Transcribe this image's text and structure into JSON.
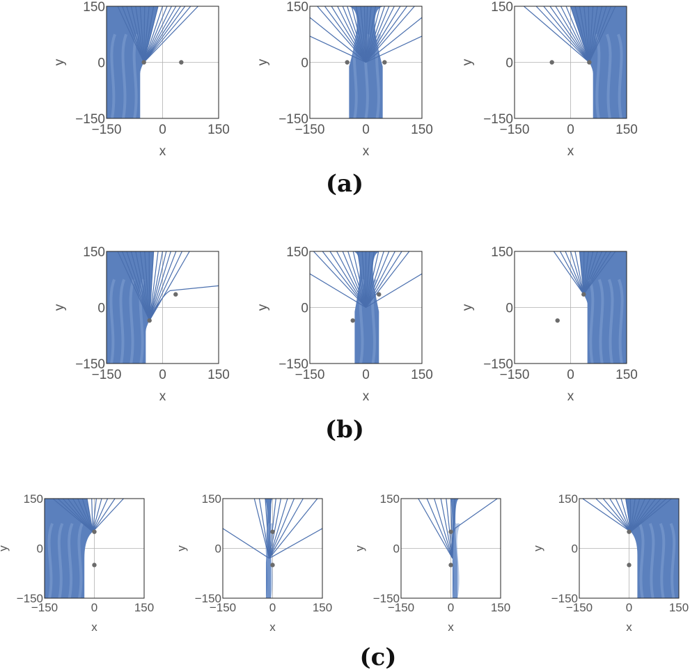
{
  "chart_data": [
    {
      "type": "line",
      "group": "(a)",
      "xlabel": "x",
      "ylabel": "y",
      "xlim": [
        -150,
        150
      ],
      "ylim": [
        -150,
        150
      ],
      "xticks": [
        "−150",
        "0",
        "150"
      ],
      "yticks": [
        "150",
        "0",
        "−150"
      ],
      "points": [
        [
          -50,
          0
        ],
        [
          50,
          0
        ]
      ],
      "fill_side": "left",
      "wall_x": -60,
      "wall_y": -30,
      "fan_origin": [
        -50,
        0
      ],
      "fan_top_x": [
        -120,
        -108,
        -96,
        -84,
        -72,
        -60,
        -48,
        -36,
        -24,
        -12,
        0,
        12,
        24,
        36,
        48,
        60,
        75,
        95
      ],
      "fan_side_y": [],
      "fan_color": "#4a6fae",
      "fill_color": "#5b80bd"
    },
    {
      "type": "line",
      "group": "(a)",
      "xlabel": "x",
      "ylabel": "y",
      "xlim": [
        -150,
        150
      ],
      "ylim": [
        -150,
        150
      ],
      "xticks": [
        "−150",
        "0",
        "150"
      ],
      "yticks": [
        "150",
        "0",
        "−150"
      ],
      "points": [
        [
          -50,
          0
        ],
        [
          50,
          0
        ]
      ],
      "fill_side": "band",
      "band": [
        -45,
        45
      ],
      "fan_origin": [
        0,
        0
      ],
      "fan_top_x": [
        -130,
        -110,
        -92,
        -76,
        -62,
        -50,
        -38,
        -26,
        -14,
        -4,
        4,
        14,
        26,
        38,
        50,
        62,
        76,
        92,
        110,
        130
      ],
      "fan_side_y": [
        70,
        120
      ],
      "fan_color": "#4a6fae",
      "fill_color": "#5b80bd"
    },
    {
      "type": "line",
      "group": "(a)",
      "xlabel": "x",
      "ylabel": "y",
      "xlim": [
        -150,
        150
      ],
      "ylim": [
        -150,
        150
      ],
      "xticks": [
        "−150",
        "0",
        "150"
      ],
      "yticks": [
        "150",
        "0",
        "−150"
      ],
      "points": [
        [
          -50,
          0
        ],
        [
          50,
          0
        ]
      ],
      "fill_side": "right",
      "wall_x": 60,
      "wall_y": -30,
      "fan_origin": [
        50,
        0
      ],
      "fan_top_x": [
        -125,
        -92,
        -72,
        -55,
        -40,
        -26,
        -12,
        0,
        12,
        24,
        36,
        48,
        60,
        72,
        84,
        96,
        108,
        120
      ],
      "fan_side_y": [],
      "fan_color": "#4a6fae",
      "fill_color": "#5b80bd"
    },
    {
      "type": "line",
      "group": "(b)",
      "xlabel": "x",
      "ylabel": "y",
      "xlim": [
        -150,
        150
      ],
      "ylim": [
        -150,
        150
      ],
      "xticks": [
        "−150",
        "0",
        "150"
      ],
      "yticks": [
        "150",
        "0",
        "−150"
      ],
      "points": [
        [
          -35,
          -35
        ],
        [
          35,
          35
        ]
      ],
      "fill_side": "left",
      "wall_x": -45,
      "wall_y": -65,
      "fan_origin": [
        -35,
        -35
      ],
      "fan_top_x": [
        -120,
        -108,
        -96,
        -84,
        -72,
        -60,
        -48,
        -36,
        -24,
        -12,
        0,
        10,
        22,
        36,
        52,
        72
      ],
      "fan_side_y": [],
      "bend_line": [
        [
          -35,
          -35
        ],
        [
          -5,
          30
        ],
        [
          20,
          45
        ],
        [
          150,
          58
        ]
      ],
      "fan_color": "#4a6fae",
      "fill_color": "#5b80bd"
    },
    {
      "type": "line",
      "group": "(b)",
      "xlabel": "x",
      "ylabel": "y",
      "xlim": [
        -150,
        150
      ],
      "ylim": [
        -150,
        150
      ],
      "xticks": [
        "−150",
        "0",
        "150"
      ],
      "yticks": [
        "150",
        "0",
        "−150"
      ],
      "points": [
        [
          -35,
          -35
        ],
        [
          35,
          35
        ]
      ],
      "fill_side": "band",
      "band": [
        -30,
        35
      ],
      "fan_origin": [
        0,
        0
      ],
      "fan_top_x": [
        -140,
        -116,
        -96,
        -78,
        -62,
        -48,
        -34,
        -22,
        -10,
        0,
        10,
        22,
        34,
        48,
        62,
        78,
        96,
        116
      ],
      "fan_side_y": [
        90
      ],
      "fan_color": "#4a6fae",
      "fill_color": "#5b80bd"
    },
    {
      "type": "line",
      "group": "(b)",
      "xlabel": "x",
      "ylabel": "y",
      "xlim": [
        -150,
        150
      ],
      "ylim": [
        -150,
        150
      ],
      "xticks": [
        "−150",
        "0",
        "150"
      ],
      "yticks": [
        "150",
        "0",
        "−150"
      ],
      "points": [
        [
          -35,
          -35
        ],
        [
          35,
          35
        ]
      ],
      "fill_side": "right",
      "wall_x": 45,
      "wall_y": 10,
      "fan_origin": [
        35,
        35
      ],
      "fan_top_x": [
        -45,
        -28,
        -14,
        0,
        12,
        24,
        36,
        48,
        60,
        72,
        84,
        96,
        108,
        120
      ],
      "fan_side_y": [],
      "fan_color": "#4a6fae",
      "fill_color": "#5b80bd"
    },
    {
      "type": "line",
      "group": "(c)",
      "xlabel": "x",
      "ylabel": "y",
      "xlim": [
        -150,
        150
      ],
      "ylim": [
        -150,
        150
      ],
      "xticks": [
        "−150",
        "0",
        "150"
      ],
      "yticks": [
        "150",
        "0",
        "−150"
      ],
      "points": [
        [
          0,
          50
        ],
        [
          0,
          -50
        ]
      ],
      "fill_side": "left",
      "wall_x": -30,
      "wall_y": -30,
      "fan_origin": [
        -5,
        50
      ],
      "fan_top_x": [
        -125,
        -110,
        -95,
        -80,
        -65,
        -50,
        -36,
        -22,
        -8,
        6,
        22,
        40,
        62,
        88
      ],
      "fan_side_y": [],
      "fan_color": "#4a6fae",
      "fill_color": "#5b80bd"
    },
    {
      "type": "line",
      "group": "(c)",
      "xlabel": "x",
      "ylabel": "y",
      "xlim": [
        -150,
        150
      ],
      "ylim": [
        -150,
        150
      ],
      "xticks": [
        "−150",
        "0",
        "150"
      ],
      "yticks": [
        "150",
        "0",
        "−150"
      ],
      "points": [
        [
          0,
          50
        ],
        [
          0,
          -50
        ]
      ],
      "fill_side": "band",
      "band": [
        -20,
        -5
      ],
      "fan_origin": [
        -10,
        -30
      ],
      "fan_top_x": [
        -55,
        -40,
        -22,
        -5,
        10,
        25,
        45,
        65,
        92,
        135
      ],
      "fan_side_y": [
        60
      ],
      "fan_color": "#4a6fae",
      "fill_color": "#5b80bd"
    },
    {
      "type": "line",
      "group": "(c)",
      "xlabel": "x",
      "ylabel": "y",
      "xlim": [
        -150,
        150
      ],
      "ylim": [
        -150,
        150
      ],
      "xticks": [
        "−150",
        "0",
        "150"
      ],
      "yticks": [
        "150",
        "0",
        "−150"
      ],
      "points": [
        [
          0,
          50
        ],
        [
          0,
          -50
        ]
      ],
      "fill_side": "band",
      "band": [
        5,
        20
      ],
      "fan_origin": [
        5,
        -30
      ],
      "fan_top_x": [
        -98,
        -72,
        -50,
        -30,
        -14,
        0,
        12
      ],
      "fan_side_y": [],
      "bend_line": [
        [
          5,
          -30
        ],
        [
          0,
          20
        ],
        [
          12,
          60
        ],
        [
          140,
          150
        ]
      ],
      "fan_color": "#4a6fae",
      "fill_color": "#5b80bd"
    },
    {
      "type": "line",
      "group": "(c)",
      "xlabel": "x",
      "ylabel": "y",
      "xlim": [
        -150,
        150
      ],
      "ylim": [
        -150,
        150
      ],
      "xticks": [
        "−150",
        "0",
        "150"
      ],
      "yticks": [
        "150",
        "0",
        "−150"
      ],
      "points": [
        [
          0,
          50
        ],
        [
          0,
          -50
        ]
      ],
      "fill_side": "right",
      "wall_x": 25,
      "wall_y": -20,
      "fan_origin": [
        5,
        50
      ],
      "fan_top_x": [
        -140,
        -100,
        -78,
        -58,
        -40,
        -24,
        -10,
        4,
        18,
        32,
        48,
        64,
        80,
        96,
        112,
        128
      ],
      "fan_side_y": [],
      "fan_color": "#4a6fae",
      "fill_color": "#5b80bd"
    }
  ],
  "labels": {
    "a": "(a)",
    "b": "(b)",
    "c": "(c)"
  }
}
